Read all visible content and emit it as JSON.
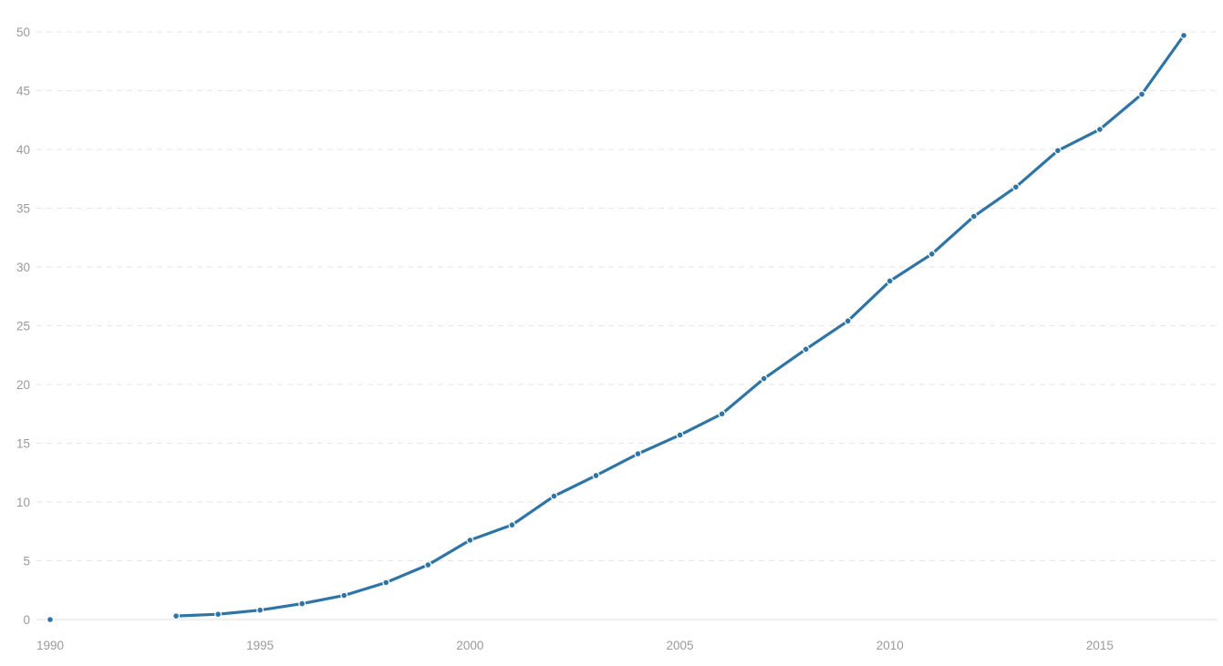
{
  "chart_data": {
    "type": "line",
    "title": "",
    "xlabel": "",
    "ylabel": "",
    "xlim": [
      1990,
      2017
    ],
    "ylim": [
      0,
      50
    ],
    "grid": true,
    "legend": "none",
    "x_ticks": [
      1990,
      1995,
      2000,
      2005,
      2010,
      2015
    ],
    "y_ticks": [
      0,
      5,
      10,
      15,
      20,
      25,
      30,
      35,
      40,
      45,
      50
    ],
    "color": "#2e75a6",
    "series": [
      {
        "points": [
          {
            "x": 1990,
            "y": 0.0
          },
          {
            "x": 1993,
            "y": 0.3
          },
          {
            "x": 1994,
            "y": 0.45
          },
          {
            "x": 1995,
            "y": 0.8
          },
          {
            "x": 1996,
            "y": 1.35
          },
          {
            "x": 1997,
            "y": 2.05
          },
          {
            "x": 1998,
            "y": 3.15
          },
          {
            "x": 1999,
            "y": 4.65
          },
          {
            "x": 2000,
            "y": 6.75
          },
          {
            "x": 2001,
            "y": 8.05
          },
          {
            "x": 2002,
            "y": 10.5
          },
          {
            "x": 2003,
            "y": 12.25
          },
          {
            "x": 2004,
            "y": 14.1
          },
          {
            "x": 2005,
            "y": 15.7
          },
          {
            "x": 2006,
            "y": 17.5
          },
          {
            "x": 2007,
            "y": 20.5
          },
          {
            "x": 2008,
            "y": 23.0
          },
          {
            "x": 2009,
            "y": 25.4
          },
          {
            "x": 2010,
            "y": 28.8
          },
          {
            "x": 2011,
            "y": 31.1
          },
          {
            "x": 2012,
            "y": 34.3
          },
          {
            "x": 2013,
            "y": 36.8
          },
          {
            "x": 2014,
            "y": 39.9
          },
          {
            "x": 2015,
            "y": 41.7
          },
          {
            "x": 2016,
            "y": 44.7
          },
          {
            "x": 2017,
            "y": 49.7
          }
        ]
      }
    ]
  }
}
